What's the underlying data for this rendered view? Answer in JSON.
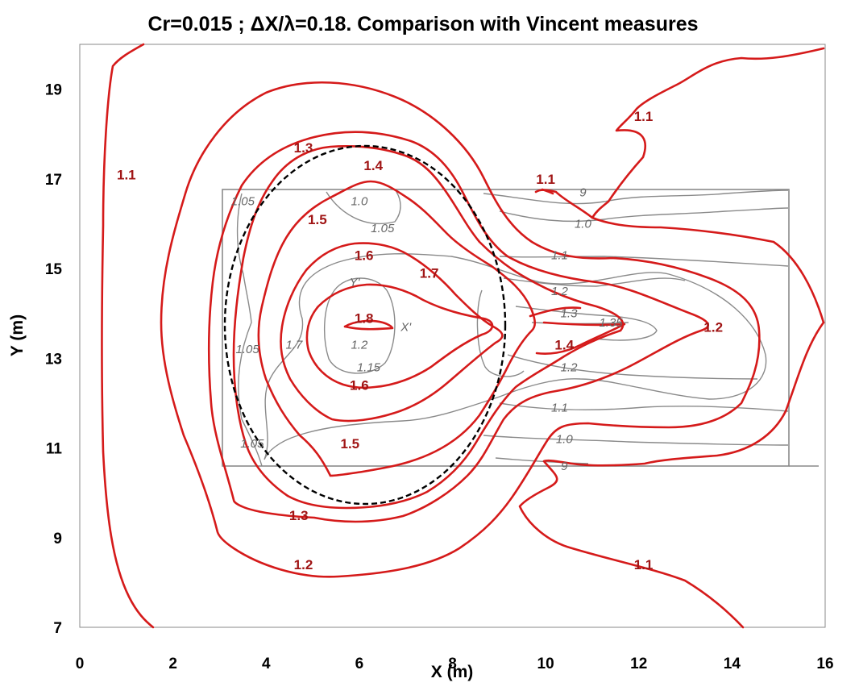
{
  "chart_data": {
    "type": "contour",
    "title": "Cr=0.015 ; ΔX/λ=0.18. Comparison with Vincent measures",
    "xlabel": "X (m)",
    "ylabel": "Y (m)",
    "xlim": [
      0,
      16
    ],
    "ylim": [
      7,
      20
    ],
    "x_ticks": [
      "0",
      "2",
      "4",
      "6",
      "8",
      "10",
      "12",
      "14",
      "16"
    ],
    "y_ticks": [
      "7",
      "9",
      "11",
      "13",
      "15",
      "17",
      "19"
    ],
    "grid": false,
    "colors": {
      "computed": "#d51a1a",
      "computed_label": "#a01515",
      "measured": "#8a8a8a",
      "ellipse": "#000000"
    },
    "computed_contour_labels": [
      {
        "text": "1.1",
        "x": 1.0,
        "y": 17.1
      },
      {
        "text": "1.1",
        "x": 10.0,
        "y": 17.0
      },
      {
        "text": "1.1",
        "x": 12.1,
        "y": 18.4
      },
      {
        "text": "1.1",
        "x": 12.1,
        "y": 8.4
      },
      {
        "text": "1.2",
        "x": 13.6,
        "y": 13.7
      },
      {
        "text": "1.2",
        "x": 4.8,
        "y": 8.4
      },
      {
        "text": "1.3",
        "x": 4.8,
        "y": 17.7
      },
      {
        "text": "1.3",
        "x": 4.7,
        "y": 9.5
      },
      {
        "text": "1.4",
        "x": 6.3,
        "y": 17.3
      },
      {
        "text": "1.4",
        "x": 10.4,
        "y": 13.3
      },
      {
        "text": "1.5",
        "x": 5.1,
        "y": 16.1
      },
      {
        "text": "1.5",
        "x": 5.8,
        "y": 11.1
      },
      {
        "text": "1.6",
        "x": 6.1,
        "y": 15.3
      },
      {
        "text": "1.6",
        "x": 6.0,
        "y": 12.4
      },
      {
        "text": "1.7",
        "x": 7.5,
        "y": 14.9
      },
      {
        "text": "1.8",
        "x": 6.1,
        "y": 13.9
      }
    ],
    "measured_contour_labels": [
      {
        "text": "1.05",
        "x": 3.5,
        "y": 16.5
      },
      {
        "text": "1.0",
        "x": 6.0,
        "y": 16.5
      },
      {
        "text": "1.05",
        "x": 6.5,
        "y": 15.9
      },
      {
        "text": "Y'",
        "x": 5.9,
        "y": 14.7
      },
      {
        "text": "X'",
        "x": 7.0,
        "y": 13.7
      },
      {
        "text": "1.2",
        "x": 6.0,
        "y": 13.3
      },
      {
        "text": "1.15",
        "x": 6.2,
        "y": 12.8
      },
      {
        "text": "1.7",
        "x": 4.6,
        "y": 13.3
      },
      {
        "text": "1.05",
        "x": 3.6,
        "y": 13.2
      },
      {
        "text": "1.05",
        "x": 3.7,
        "y": 11.1
      },
      {
        "text": "9",
        "x": 10.8,
        "y": 16.7
      },
      {
        "text": "1.0",
        "x": 10.8,
        "y": 16.0
      },
      {
        "text": "1.1",
        "x": 10.3,
        "y": 15.3
      },
      {
        "text": "1.2",
        "x": 10.3,
        "y": 14.5
      },
      {
        "text": "1.3",
        "x": 10.5,
        "y": 14.0
      },
      {
        "text": "1.35",
        "x": 11.4,
        "y": 13.8
      },
      {
        "text": "1.2",
        "x": 10.5,
        "y": 12.8
      },
      {
        "text": "1.1",
        "x": 10.3,
        "y": 11.9
      },
      {
        "text": "1.0",
        "x": 10.4,
        "y": 11.2
      },
      {
        "text": "9",
        "x": 10.4,
        "y": 10.6
      }
    ],
    "ellipse": {
      "center": [
        6.1,
        13.7
      ],
      "semi_axis_x": 3.0,
      "semi_axis_y": 3.95
    },
    "measurement_box": {
      "x": [
        3.1,
        15.3
      ],
      "y": [
        10.6,
        16.8
      ]
    }
  }
}
